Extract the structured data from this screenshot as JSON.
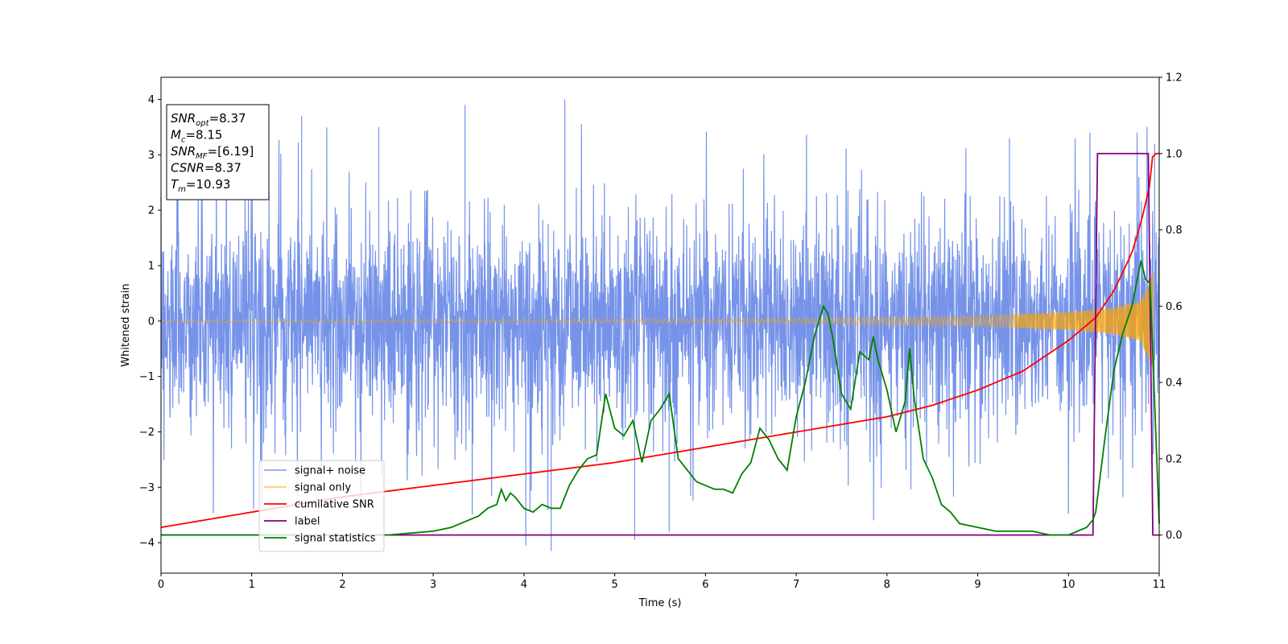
{
  "chart_data": {
    "type": "line",
    "xlabel": "Time (s)",
    "ylabel": "Whitened strain",
    "xlim": [
      0,
      11
    ],
    "ylim": [
      -4.55,
      4.4
    ],
    "y2lim": [
      -0.1,
      1.2
    ],
    "x_ticks": [
      "0",
      "1",
      "2",
      "3",
      "4",
      "5",
      "6",
      "7",
      "8",
      "9",
      "10",
      "11"
    ],
    "y_ticks": [
      "−4",
      "−3",
      "−2",
      "−1",
      "0",
      "1",
      "2",
      "3",
      "4"
    ],
    "y2_ticks": [
      "0.0",
      "0.2",
      "0.4",
      "0.6",
      "0.8",
      "1.0",
      "1.2"
    ],
    "y_tick_values": [
      -4,
      -3,
      -2,
      -1,
      0,
      1,
      2,
      3,
      4
    ],
    "y2_tick_values": [
      0,
      0.2,
      0.4,
      0.6,
      0.8,
      1.0,
      1.2
    ],
    "legend": {
      "position": "lower-left",
      "entries": [
        {
          "label": "signal+ noise",
          "color": "#4169e1"
        },
        {
          "label": "signal only",
          "color": "#ffa500"
        },
        {
          "label": "cumilative SNR",
          "color": "#ff0000"
        },
        {
          "label": "label",
          "color": "#800080"
        },
        {
          "label": "signal statistics",
          "color": "#008000"
        }
      ]
    },
    "annotation": {
      "lines": [
        {
          "sym": "SNR",
          "sub": "opt",
          "val": "=8.37"
        },
        {
          "sym": "M",
          "sub": "c",
          "val": "=8.15"
        },
        {
          "sym": "SNR",
          "sub": "MF",
          "val": "=[6.19]"
        },
        {
          "sym": "CSNR",
          "sub": "",
          "val": "=8.37"
        },
        {
          "sym": "T",
          "sub": "m",
          "val": "=10.93"
        }
      ]
    },
    "series": [
      {
        "name": "signal+ noise",
        "axis": "left",
        "color": "#4169e1",
        "description_envelope": {
          "typical_max": 2.3,
          "typical_min": -2.3,
          "peaks": [
            [
              1.55,
              3.7
            ],
            [
              2.4,
              3.5
            ],
            [
              3.35,
              3.9
            ],
            [
              4.45,
              4.0
            ],
            [
              4.3,
              -4.15
            ],
            [
              4.02,
              -4.05
            ],
            [
              5.22,
              -3.95
            ],
            [
              5.6,
              -3.8
            ],
            [
              9.35,
              3.3
            ],
            [
              10.95,
              3.2
            ]
          ]
        }
      },
      {
        "name": "signal only",
        "axis": "left",
        "color": "#ffa500",
        "envelope": {
          "x": [
            0,
            2,
            4,
            6,
            7,
            8,
            9,
            10,
            10.5,
            10.8,
            10.93,
            11
          ],
          "amp": [
            0.02,
            0.025,
            0.03,
            0.04,
            0.05,
            0.07,
            0.1,
            0.17,
            0.25,
            0.4,
            0.9,
            0.0
          ]
        }
      },
      {
        "name": "cumilative SNR",
        "axis": "right",
        "color": "#ff0000",
        "x": [
          0,
          0.5,
          1,
          2,
          3,
          4,
          5,
          6,
          7,
          8,
          8.5,
          9,
          9.5,
          10,
          10.3,
          10.5,
          10.7,
          10.8,
          10.9,
          10.93,
          11
        ],
        "y": [
          0.02,
          0.04,
          0.06,
          0.1,
          0.13,
          0.16,
          0.19,
          0.23,
          0.27,
          0.31,
          0.34,
          0.38,
          0.43,
          0.51,
          0.57,
          0.64,
          0.74,
          0.82,
          0.92,
          1.0,
          1.0
        ]
      },
      {
        "name": "label",
        "axis": "right",
        "color": "#800080",
        "x": [
          0,
          10.27,
          10.32,
          10.88,
          10.93,
          11
        ],
        "y": [
          0,
          0,
          1,
          1,
          0,
          0
        ]
      },
      {
        "name": "signal statistics",
        "axis": "right",
        "color": "#008000",
        "x": [
          0,
          2,
          2.5,
          3,
          3.2,
          3.4,
          3.5,
          3.6,
          3.7,
          3.75,
          3.8,
          3.85,
          3.9,
          4.0,
          4.1,
          4.2,
          4.3,
          4.4,
          4.5,
          4.6,
          4.7,
          4.8,
          4.9,
          5.0,
          5.1,
          5.2,
          5.3,
          5.4,
          5.5,
          5.6,
          5.7,
          5.8,
          5.9,
          6.0,
          6.1,
          6.2,
          6.3,
          6.4,
          6.5,
          6.6,
          6.7,
          6.8,
          6.9,
          7.0,
          7.1,
          7.2,
          7.3,
          7.35,
          7.4,
          7.5,
          7.6,
          7.7,
          7.8,
          7.85,
          7.9,
          8.0,
          8.1,
          8.2,
          8.25,
          8.3,
          8.4,
          8.5,
          8.6,
          8.7,
          8.8,
          9.0,
          9.2,
          9.4,
          9.6,
          9.8,
          10.0,
          10.1,
          10.2,
          10.27,
          10.3,
          10.4,
          10.5,
          10.6,
          10.7,
          10.8,
          10.85,
          10.9,
          11
        ],
        "y": [
          0,
          0,
          0,
          0.01,
          0.02,
          0.04,
          0.05,
          0.07,
          0.08,
          0.12,
          0.09,
          0.11,
          0.1,
          0.07,
          0.06,
          0.08,
          0.07,
          0.07,
          0.13,
          0.17,
          0.2,
          0.21,
          0.37,
          0.28,
          0.26,
          0.3,
          0.19,
          0.3,
          0.33,
          0.37,
          0.2,
          0.17,
          0.14,
          0.13,
          0.12,
          0.12,
          0.11,
          0.16,
          0.19,
          0.28,
          0.25,
          0.2,
          0.17,
          0.31,
          0.4,
          0.52,
          0.6,
          0.58,
          0.52,
          0.37,
          0.33,
          0.48,
          0.46,
          0.52,
          0.46,
          0.38,
          0.27,
          0.35,
          0.49,
          0.36,
          0.2,
          0.15,
          0.08,
          0.06,
          0.03,
          0.02,
          0.01,
          0.01,
          0.01,
          0.0,
          0.0,
          0.01,
          0.02,
          0.04,
          0.06,
          0.25,
          0.43,
          0.53,
          0.6,
          0.72,
          0.67,
          0.66,
          0.03
        ]
      }
    ]
  }
}
